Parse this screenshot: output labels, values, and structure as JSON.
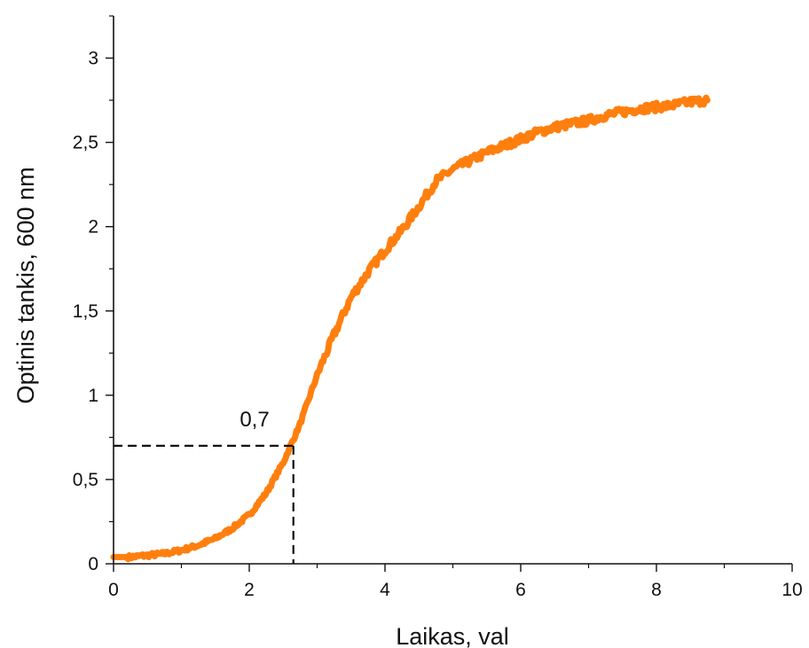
{
  "chart_data": {
    "type": "line",
    "xlabel": "Laikas, val",
    "ylabel": "Optinis tankis, 600 nm",
    "xlim": [
      0,
      10
    ],
    "ylim": [
      0,
      3.25
    ],
    "x_ticks": [
      "0",
      "2",
      "4",
      "6",
      "8",
      "10"
    ],
    "x_tick_values": [
      0,
      2,
      4,
      6,
      8,
      10
    ],
    "y_ticks": [
      "0",
      "0,5",
      "1",
      "1,5",
      "2",
      "2,5",
      "3"
    ],
    "y_tick_values": [
      0,
      0.5,
      1,
      1.5,
      2,
      2.5,
      3
    ],
    "grid": false,
    "series": [
      {
        "color": "#ff7f0e",
        "x": [
          0,
          0.25,
          0.5,
          0.75,
          1.0,
          1.25,
          1.5,
          1.75,
          2.0,
          2.25,
          2.5,
          2.75,
          3.0,
          3.25,
          3.5,
          3.75,
          4.0,
          4.25,
          4.5,
          4.75,
          5.0,
          5.25,
          5.5,
          5.75,
          6.0,
          6.25,
          6.5,
          6.75,
          7.0,
          7.25,
          7.5,
          7.75,
          8.0,
          8.25,
          8.5,
          8.75
        ],
        "y": [
          0.04,
          0.04,
          0.05,
          0.06,
          0.08,
          0.11,
          0.15,
          0.21,
          0.29,
          0.42,
          0.6,
          0.83,
          1.12,
          1.36,
          1.58,
          1.73,
          1.86,
          1.98,
          2.12,
          2.27,
          2.34,
          2.39,
          2.44,
          2.48,
          2.52,
          2.56,
          2.59,
          2.61,
          2.63,
          2.66,
          2.68,
          2.7,
          2.71,
          2.72,
          2.74,
          2.75
        ]
      }
    ],
    "reference": {
      "x": 2.65,
      "y": 0.7,
      "label": "0,7",
      "style": "dashed"
    }
  }
}
